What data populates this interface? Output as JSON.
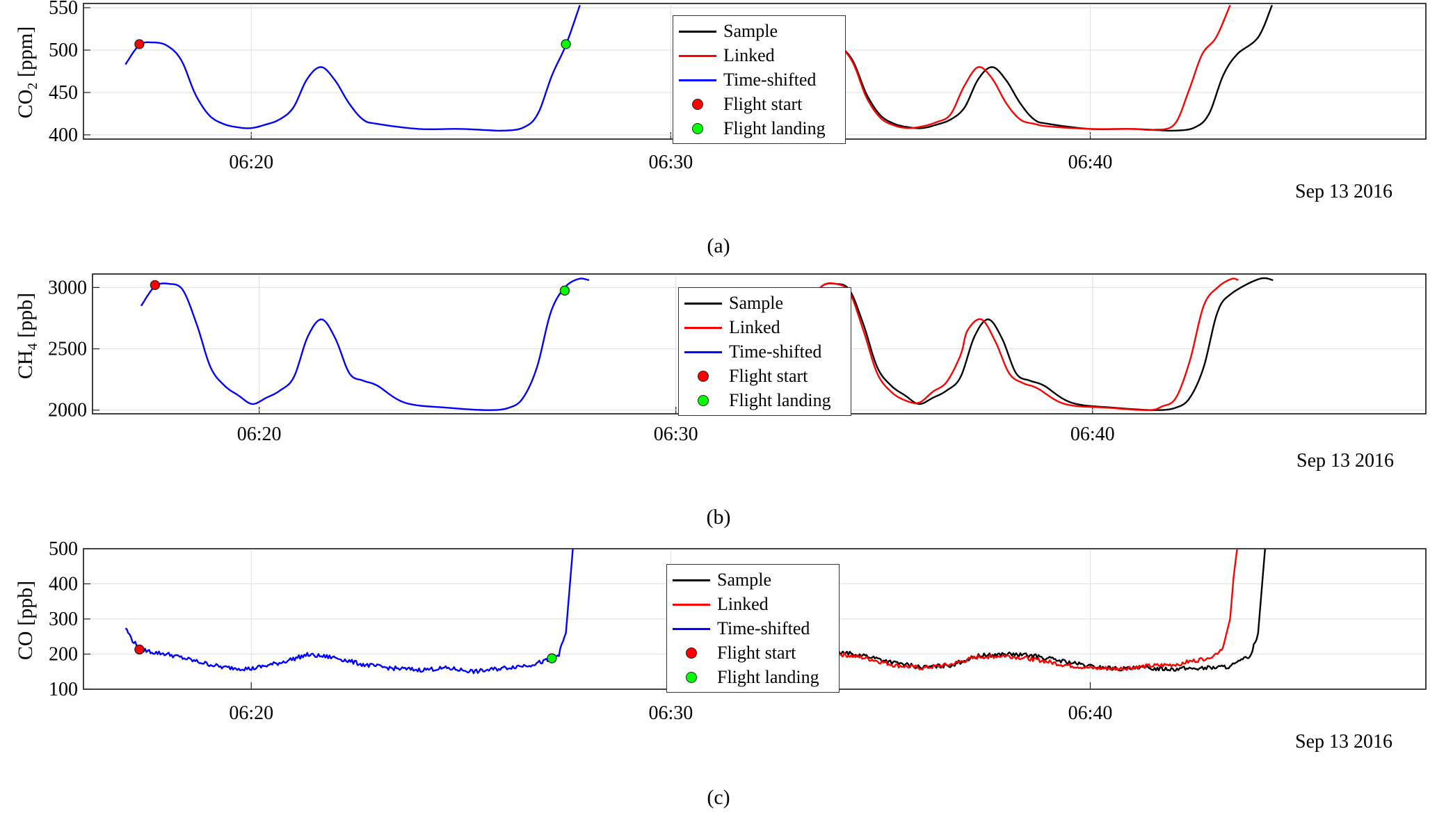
{
  "time_axis": {
    "start": "06:16:00",
    "end": "06:48:00",
    "tick_labels": [
      "06:20",
      "06:30",
      "06:40"
    ],
    "date_label": "Sep 13 2016"
  },
  "legend": {
    "items": [
      {
        "label": "Sample",
        "kind": "line",
        "color": "#000000"
      },
      {
        "label": "Linked",
        "kind": "line",
        "color": "#ff0000"
      },
      {
        "label": "Time-shifted",
        "kind": "line",
        "color": "#0000ff"
      },
      {
        "label": "Flight start",
        "kind": "marker",
        "color": "#ff0000"
      },
      {
        "label": "Flight landing",
        "kind": "marker",
        "color": "#00ff00"
      }
    ]
  },
  "captions": [
    "(a)",
    "(b)",
    "(c)"
  ],
  "chart_data": [
    {
      "type": "line",
      "panel": "(a)",
      "ylabel_main": "CO",
      "ylabel_sub": "2",
      "ylabel_unit": "[ppm]",
      "ylim": [
        395,
        555
      ],
      "yticks": [
        400,
        450,
        500,
        550
      ],
      "grid": true,
      "legend_position": "top-center",
      "series": [
        {
          "name": "Time-shifted",
          "color": "#0000ff",
          "x": [
            "06:17:00",
            "06:17:20",
            "06:17:40",
            "06:18:00",
            "06:18:20",
            "06:18:40",
            "06:19:00",
            "06:19:20",
            "06:19:40",
            "06:20:00",
            "06:20:20",
            "06:20:40",
            "06:21:00",
            "06:21:20",
            "06:21:40",
            "06:22:00",
            "06:22:20",
            "06:22:40",
            "06:23:00",
            "06:24:00",
            "06:25:00",
            "06:26:00",
            "06:26:30",
            "06:26:50",
            "06:27:10",
            "06:27:30",
            "06:27:50"
          ],
          "y": [
            483,
            506,
            509,
            505,
            488,
            448,
            423,
            413,
            409,
            408,
            412,
            418,
            432,
            466,
            480,
            464,
            437,
            418,
            413,
            407,
            407,
            405,
            409,
            425,
            470,
            506,
            553
          ]
        },
        {
          "name": "Sample",
          "color": "#000000",
          "x": [
            "06:33:00",
            "06:33:20",
            "06:33:40",
            "06:34:00",
            "06:34:20",
            "06:34:40",
            "06:35:00",
            "06:35:20",
            "06:35:40",
            "06:36:00",
            "06:36:20",
            "06:36:40",
            "06:37:00",
            "06:37:20",
            "06:37:40",
            "06:38:00",
            "06:38:20",
            "06:38:40",
            "06:39:00",
            "06:40:00",
            "06:41:00",
            "06:42:00",
            "06:42:30",
            "06:42:50",
            "06:43:10",
            "06:43:30",
            "06:44:00",
            "06:44:20"
          ],
          "y": [
            483,
            506,
            509,
            505,
            488,
            448,
            423,
            413,
            409,
            408,
            412,
            418,
            432,
            466,
            480,
            464,
            437,
            418,
            413,
            407,
            407,
            405,
            409,
            425,
            470,
            495,
            515,
            553
          ]
        },
        {
          "name": "Linked",
          "color": "#ff0000",
          "x": [
            "06:33:00",
            "06:33:20",
            "06:33:40",
            "06:34:00",
            "06:34:20",
            "06:34:40",
            "06:35:00",
            "06:35:20",
            "06:35:40",
            "06:36:00",
            "06:36:20",
            "06:36:40",
            "06:37:00",
            "06:37:20",
            "06:37:40",
            "06:38:00",
            "06:38:20",
            "06:38:40",
            "06:39:00",
            "06:40:00",
            "06:41:00",
            "06:41:30",
            "06:42:00",
            "06:42:20",
            "06:42:40",
            "06:43:00",
            "06:43:20"
          ],
          "y": [
            483,
            506,
            509,
            505,
            486,
            444,
            420,
            411,
            408,
            410,
            415,
            424,
            458,
            480,
            466,
            437,
            418,
            413,
            410,
            407,
            407,
            406,
            412,
            450,
            495,
            515,
            553
          ]
        }
      ],
      "markers": [
        {
          "name": "Flight start",
          "x": "06:17:20",
          "y": 507,
          "color": "#ff0000"
        },
        {
          "name": "Flight landing",
          "x": "06:27:30",
          "y": 507,
          "color": "#00ff00"
        }
      ]
    },
    {
      "type": "line",
      "panel": "(b)",
      "ylabel_main": "CH",
      "ylabel_sub": "4",
      "ylabel_unit": "[ppb]",
      "ylim": [
        1970,
        3110
      ],
      "yticks": [
        2000,
        2500,
        3000
      ],
      "grid": true,
      "legend_position": "center",
      "series": [
        {
          "name": "Time-shifted",
          "color": "#0000ff",
          "x": [
            "06:17:10",
            "06:17:30",
            "06:17:50",
            "06:18:10",
            "06:18:30",
            "06:18:50",
            "06:19:10",
            "06:19:30",
            "06:19:50",
            "06:20:10",
            "06:20:30",
            "06:20:50",
            "06:21:10",
            "06:21:30",
            "06:21:50",
            "06:22:10",
            "06:22:30",
            "06:22:50",
            "06:23:30",
            "06:24:30",
            "06:25:30",
            "06:26:00",
            "06:26:20",
            "06:26:40",
            "06:27:00",
            "06:27:20",
            "06:27:40",
            "06:27:55"
          ],
          "y": [
            2850,
            3010,
            3030,
            2980,
            2700,
            2350,
            2200,
            2120,
            2050,
            2100,
            2160,
            2270,
            2600,
            2740,
            2580,
            2300,
            2240,
            2200,
            2060,
            2020,
            2000,
            2020,
            2100,
            2350,
            2800,
            3000,
            3070,
            3060
          ]
        },
        {
          "name": "Sample",
          "color": "#000000",
          "x": [
            "06:33:10",
            "06:33:30",
            "06:33:50",
            "06:34:10",
            "06:34:30",
            "06:34:50",
            "06:35:10",
            "06:35:30",
            "06:35:50",
            "06:36:10",
            "06:36:30",
            "06:36:50",
            "06:37:10",
            "06:37:30",
            "06:37:50",
            "06:38:10",
            "06:38:30",
            "06:38:50",
            "06:39:30",
            "06:40:30",
            "06:41:30",
            "06:42:00",
            "06:42:20",
            "06:42:40",
            "06:43:00",
            "06:43:20",
            "06:44:00",
            "06:44:20"
          ],
          "y": [
            2850,
            3010,
            3030,
            2980,
            2700,
            2350,
            2200,
            2120,
            2050,
            2100,
            2160,
            2270,
            2600,
            2740,
            2580,
            2300,
            2240,
            2200,
            2060,
            2020,
            2000,
            2020,
            2100,
            2350,
            2800,
            2950,
            3070,
            3060
          ]
        },
        {
          "name": "Linked",
          "color": "#ff0000",
          "x": [
            "06:33:10",
            "06:33:30",
            "06:33:50",
            "06:34:10",
            "06:34:30",
            "06:34:50",
            "06:35:10",
            "06:35:30",
            "06:35:50",
            "06:36:10",
            "06:36:30",
            "06:36:50",
            "06:37:00",
            "06:37:20",
            "06:37:40",
            "06:38:00",
            "06:38:20",
            "06:38:40",
            "06:39:20",
            "06:40:20",
            "06:41:20",
            "06:41:40",
            "06:42:00",
            "06:42:20",
            "06:42:40",
            "06:43:00",
            "06:43:20",
            "06:43:30"
          ],
          "y": [
            2850,
            3010,
            3030,
            2960,
            2650,
            2300,
            2150,
            2080,
            2060,
            2150,
            2230,
            2450,
            2650,
            2740,
            2560,
            2300,
            2220,
            2180,
            2050,
            2020,
            2000,
            2030,
            2100,
            2400,
            2850,
            3000,
            3070,
            3060
          ]
        }
      ],
      "markers": [
        {
          "name": "Flight start",
          "x": "06:17:30",
          "y": 3020,
          "color": "#ff0000"
        },
        {
          "name": "Flight landing",
          "x": "06:27:20",
          "y": 2975,
          "color": "#00ff00"
        }
      ]
    },
    {
      "type": "line",
      "panel": "(c)",
      "ylabel_main": "CO [ppb]",
      "ylim": [
        100,
        500
      ],
      "yticks": [
        100,
        200,
        300,
        400,
        500
      ],
      "grid": true,
      "legend_position": "center",
      "series": [
        {
          "name": "Time-shifted",
          "color": "#0000ff",
          "noise": 6,
          "x": [
            "06:17:00",
            "06:17:10",
            "06:17:20",
            "06:17:40",
            "06:18:00",
            "06:18:40",
            "06:19:20",
            "06:20:00",
            "06:20:40",
            "06:21:20",
            "06:22:00",
            "06:22:40",
            "06:23:20",
            "06:24:00",
            "06:24:40",
            "06:25:20",
            "06:26:00",
            "06:26:40",
            "06:27:10",
            "06:27:20",
            "06:27:30",
            "06:27:35",
            "06:27:40"
          ],
          "y": [
            275,
            240,
            215,
            205,
            200,
            180,
            162,
            158,
            175,
            198,
            190,
            170,
            160,
            155,
            160,
            150,
            160,
            170,
            185,
            200,
            260,
            380,
            500
          ]
        },
        {
          "name": "Sample",
          "color": "#000000",
          "noise": 6,
          "x": [
            "06:33:00",
            "06:33:20",
            "06:34:00",
            "06:34:40",
            "06:35:20",
            "06:36:00",
            "06:36:40",
            "06:37:20",
            "06:38:00",
            "06:38:40",
            "06:39:20",
            "06:40:00",
            "06:40:40",
            "06:41:20",
            "06:42:00",
            "06:42:40",
            "06:43:20",
            "06:43:40",
            "06:43:50",
            "06:44:00",
            "06:44:05",
            "06:44:10"
          ],
          "y": [
            270,
            225,
            205,
            195,
            175,
            162,
            168,
            195,
            200,
            195,
            180,
            165,
            158,
            160,
            158,
            160,
            165,
            185,
            200,
            260,
            380,
            500
          ]
        },
        {
          "name": "Linked",
          "color": "#ff0000",
          "noise": 6,
          "x": [
            "06:33:00",
            "06:33:20",
            "06:34:00",
            "06:34:40",
            "06:35:20",
            "06:36:00",
            "06:36:40",
            "06:37:20",
            "06:38:00",
            "06:38:40",
            "06:39:20",
            "06:40:00",
            "06:40:40",
            "06:41:20",
            "06:42:00",
            "06:42:40",
            "06:43:00",
            "06:43:10",
            "06:43:20",
            "06:43:25",
            "06:43:30"
          ],
          "y": [
            270,
            225,
            200,
            188,
            168,
            160,
            170,
            192,
            195,
            185,
            170,
            160,
            158,
            165,
            170,
            185,
            200,
            220,
            300,
            420,
            500
          ]
        }
      ],
      "markers": [
        {
          "name": "Flight start",
          "x": "06:17:20",
          "y": 213,
          "color": "#ff0000"
        },
        {
          "name": "Flight landing",
          "x": "06:27:10",
          "y": 188,
          "color": "#00ff00"
        }
      ]
    }
  ]
}
